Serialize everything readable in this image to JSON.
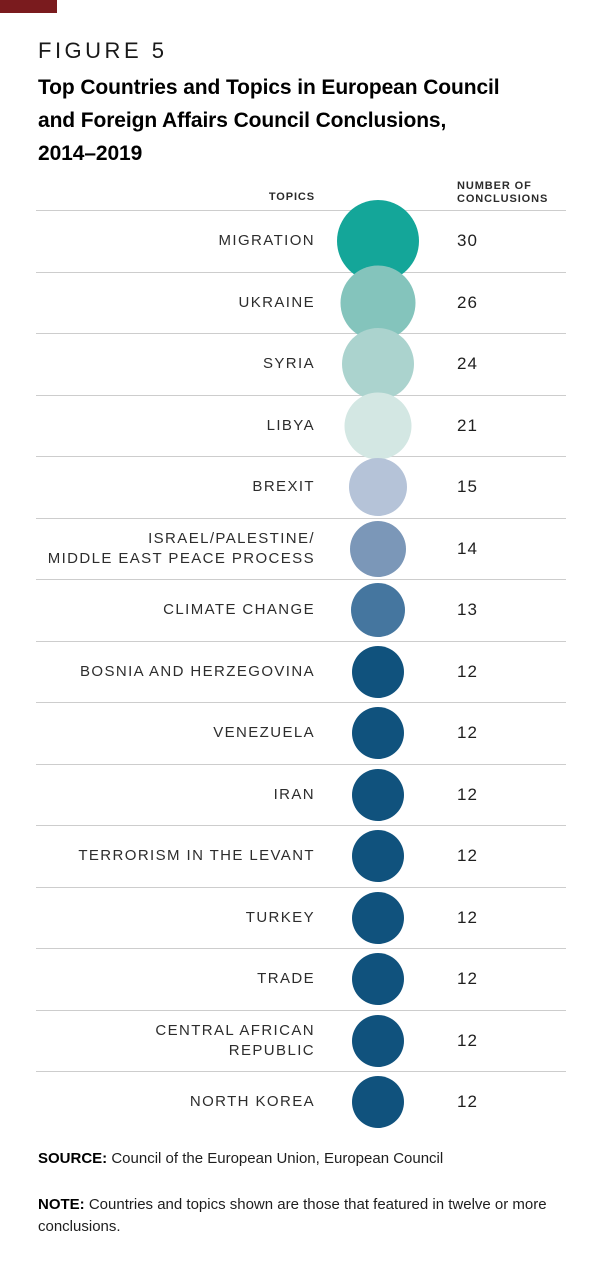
{
  "brand": {
    "corner_color": "#7A1B1E"
  },
  "figure": {
    "eyebrow": "FIGURE 5",
    "title_line1": "Top Countries and Topics in European Council",
    "title_line2": "and Foreign Affairs Council Conclusions,",
    "title_line3": "2014–2019"
  },
  "table": {
    "topics_header": "TOPICS",
    "value_header": "NUMBER OF\nCONCLUSIONS"
  },
  "chart_data": {
    "type": "bubble",
    "title": "Top Countries and Topics in European Council and Foreign Affairs Council Conclusions, 2014–2019",
    "category_label": "TOPICS",
    "value_label": "NUMBER OF CONCLUSIONS",
    "legend_position": "none",
    "grid": "horizontal-row-separators",
    "encoding": "bubble size and color encode number of conclusions",
    "categories": [
      "MIGRATION",
      "UKRAINE",
      "SYRIA",
      "LIBYA",
      "BREXIT",
      "ISRAEL/PALESTINE/ MIDDLE EAST PEACE PROCESS",
      "CLIMATE CHANGE",
      "BOSNIA AND HERZEGOVINA",
      "VENEZUELA",
      "IRAN",
      "TERRORISM IN THE LEVANT",
      "TURKEY",
      "TRADE",
      "CENTRAL AFRICAN REPUBLIC",
      "NORTH KOREA"
    ],
    "values": [
      30,
      26,
      24,
      21,
      15,
      14,
      13,
      12,
      12,
      12,
      12,
      12,
      12,
      12,
      12
    ],
    "rows": [
      {
        "label": "MIGRATION",
        "value": "30",
        "color": "#14A699",
        "diameter": 82
      },
      {
        "label": "UKRAINE",
        "value": "26",
        "color": "#84C4BC",
        "diameter": 75
      },
      {
        "label": "SYRIA",
        "value": "24",
        "color": "#ABD3CE",
        "diameter": 72
      },
      {
        "label": "LIBYA",
        "value": "21",
        "color": "#D3E7E3",
        "diameter": 67
      },
      {
        "label": "BREXIT",
        "value": "15",
        "color": "#B5C3D8",
        "diameter": 58
      },
      {
        "label": "ISRAEL/PALESTINE/\nMIDDLE EAST PEACE PROCESS",
        "value": "14",
        "color": "#7B97B8",
        "diameter": 56
      },
      {
        "label": "CLIMATE CHANGE",
        "value": "13",
        "color": "#45769F",
        "diameter": 54
      },
      {
        "label": "BOSNIA AND HERZEGOVINA",
        "value": "12",
        "color": "#10527D",
        "diameter": 52
      },
      {
        "label": "VENEZUELA",
        "value": "12",
        "color": "#10527D",
        "diameter": 52
      },
      {
        "label": "IRAN",
        "value": "12",
        "color": "#10527D",
        "diameter": 52
      },
      {
        "label": "TERRORISM IN THE LEVANT",
        "value": "12",
        "color": "#10527D",
        "diameter": 52
      },
      {
        "label": "TURKEY",
        "value": "12",
        "color": "#10527D",
        "diameter": 52
      },
      {
        "label": "TRADE",
        "value": "12",
        "color": "#10527D",
        "diameter": 52
      },
      {
        "label": "CENTRAL AFRICAN\nREPUBLIC",
        "value": "12",
        "color": "#10527D",
        "diameter": 52
      },
      {
        "label": "NORTH KOREA",
        "value": "12",
        "color": "#10527D",
        "diameter": 52
      }
    ]
  },
  "footer": {
    "source_label": "SOURCE:",
    "source_text": " Council of the European Union, European Council",
    "note_label": "NOTE:",
    "note_text": " Countries and topics shown are those that featured in twelve or more conclusions."
  }
}
